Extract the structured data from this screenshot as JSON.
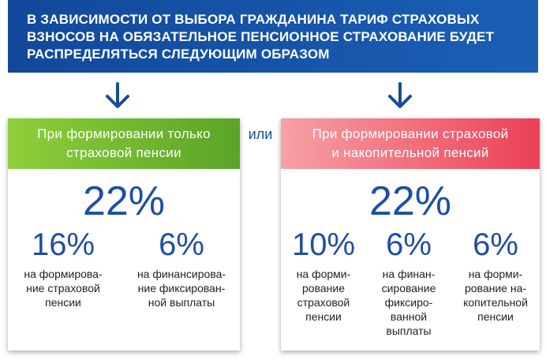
{
  "banner": {
    "text": "В ЗАВИСИМОСТИ ОТ ВЫБОРА ГРАЖДАНИНА ТАРИФ СТРАХОВЫХ ВЗНОСОВ НА ОБЯЗАТЕЛЬНОЕ ПЕНСИОННОЕ СТРАХОВАНИЕ БУДЕТ РАСПРЕДЕЛЯТЬСЯ СЛЕДУЮЩИМ ОБРАЗОМ"
  },
  "connector": "или",
  "colors": {
    "banner": "#1a5fb6",
    "left_head": "#6db72e",
    "right_head": "#ee4b5e",
    "percent": "#1f4ea3"
  },
  "left": {
    "title": "При формировании только\nстраховой пенсии",
    "total": "22%",
    "parts": [
      {
        "pct": "16%",
        "desc": "на формирова-\nние страховой\nпенсии"
      },
      {
        "pct": "6%",
        "desc": "на финансирова-\nние фиксирован-\nной выплаты"
      }
    ]
  },
  "right": {
    "title": "При формировании страховой\nи накопительной пенсий",
    "total": "22%",
    "parts": [
      {
        "pct": "10%",
        "desc": "на форми-\nрование\nстраховой\nпенсии"
      },
      {
        "pct": "6%",
        "desc": "на финан-\nсирование\nфиксиро-\nванной\nвыплаты"
      },
      {
        "pct": "6%",
        "desc": "на форми-\nрование на-\nкопительной\nпенсии"
      }
    ]
  }
}
